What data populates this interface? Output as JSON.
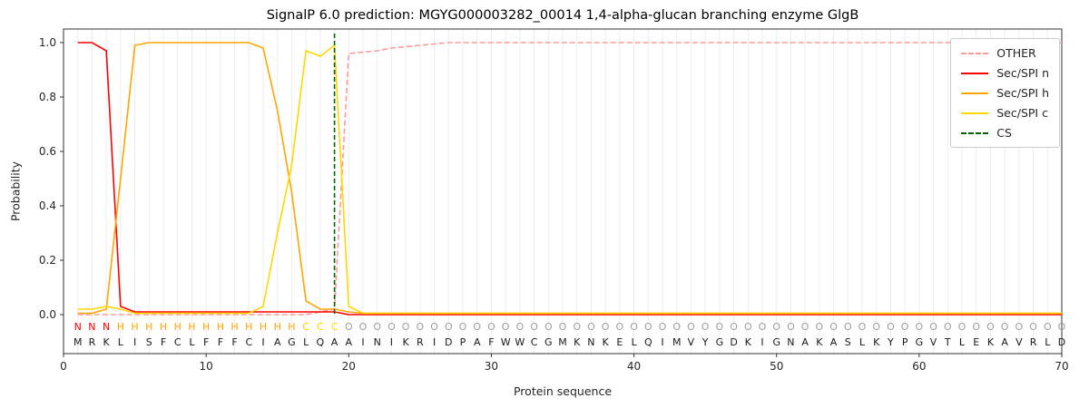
{
  "chart_data": {
    "type": "line",
    "title": "SignalP 6.0 prediction: MGYG000003282_00014 1,4-alpha-glucan branching enzyme GlgB",
    "xlabel": "Protein sequence",
    "ylabel": "Probability",
    "x_range": [
      1,
      70
    ],
    "xlim": [
      0,
      70
    ],
    "ylim": [
      -0.14,
      1.05
    ],
    "xticks": [
      0,
      10,
      20,
      30,
      40,
      50,
      60,
      70
    ],
    "yticks": [
      "0.0",
      "0.2",
      "0.4",
      "0.6",
      "0.8",
      "1.0"
    ],
    "grid": "vertical line per residue",
    "legend_position": "upper right",
    "series": [
      {
        "name": "OTHER",
        "color": "#ff9999",
        "dash": true,
        "values": [
          0,
          0,
          0,
          0,
          0,
          0,
          0,
          0,
          0,
          0,
          0,
          0,
          0,
          0,
          0,
          0,
          0,
          0.01,
          0.02,
          0.96,
          0.965,
          0.97,
          0.98,
          0.985,
          0.99,
          0.995,
          1,
          1,
          1,
          1,
          1,
          1,
          1,
          1,
          1,
          1,
          1,
          1,
          1,
          1,
          1,
          1,
          1,
          1,
          1,
          1,
          1,
          1,
          1,
          1,
          1,
          1,
          1,
          1,
          1,
          1,
          1,
          1,
          1,
          1,
          1,
          1,
          1,
          1,
          1,
          1,
          1,
          1,
          1,
          1
        ]
      },
      {
        "name": "Sec/SPI n",
        "color": "#ff0000",
        "dash": false,
        "values": [
          1,
          1,
          0.97,
          0.03,
          0.01,
          0.01,
          0.01,
          0.01,
          0.01,
          0.01,
          0.01,
          0.01,
          0.01,
          0.01,
          0.01,
          0.01,
          0.01,
          0.01,
          0.01,
          0,
          0,
          0,
          0,
          0,
          0,
          0,
          0,
          0,
          0,
          0,
          0,
          0,
          0,
          0,
          0,
          0,
          0,
          0,
          0,
          0,
          0,
          0,
          0,
          0,
          0,
          0,
          0,
          0,
          0,
          0,
          0,
          0,
          0,
          0,
          0,
          0,
          0,
          0,
          0,
          0,
          0,
          0,
          0,
          0,
          0,
          0,
          0,
          0,
          0,
          0
        ]
      },
      {
        "name": "Sec/SPI h",
        "color": "#ffa500",
        "dash": false,
        "values": [
          0.005,
          0.005,
          0.02,
          0.5,
          0.99,
          1,
          1,
          1,
          1,
          1,
          1,
          1,
          1,
          0.98,
          0.75,
          0.45,
          0.05,
          0.02,
          0.02,
          0.01,
          0.005,
          0.005,
          0.005,
          0.005,
          0.005,
          0.005,
          0.005,
          0.005,
          0.005,
          0.005,
          0.005,
          0.005,
          0.005,
          0.005,
          0.005,
          0.005,
          0.005,
          0.005,
          0.005,
          0.005,
          0.005,
          0.005,
          0.005,
          0.005,
          0.005,
          0.005,
          0.005,
          0.005,
          0.005,
          0.005,
          0.005,
          0.005,
          0.005,
          0.005,
          0.005,
          0.005,
          0.005,
          0.005,
          0.005,
          0.005,
          0.005,
          0.005,
          0.005,
          0.005,
          0.005,
          0.005,
          0.005,
          0.005,
          0.005,
          0.005
        ]
      },
      {
        "name": "Sec/SPI c",
        "color": "#ffd700",
        "dash": false,
        "values": [
          0.02,
          0.02,
          0.03,
          0.02,
          0.005,
          0.005,
          0.005,
          0.005,
          0.005,
          0.005,
          0.005,
          0.005,
          0.005,
          0.03,
          0.3,
          0.55,
          0.97,
          0.95,
          0.99,
          0.03,
          0.005,
          0.005,
          0.005,
          0.005,
          0.005,
          0.005,
          0.005,
          0.005,
          0.005,
          0.005,
          0.005,
          0.005,
          0.005,
          0.005,
          0.005,
          0.005,
          0.005,
          0.005,
          0.005,
          0.005,
          0.005,
          0.005,
          0.005,
          0.005,
          0.005,
          0.005,
          0.005,
          0.005,
          0.005,
          0.005,
          0.005,
          0.005,
          0.005,
          0.005,
          0.005,
          0.005,
          0.005,
          0.005,
          0.005,
          0.005,
          0.005,
          0.005,
          0.005,
          0.005,
          0.005,
          0.005,
          0.005,
          0.005,
          0.005,
          0.005
        ]
      }
    ],
    "cs": {
      "name": "CS",
      "color": "#006400",
      "dash": true,
      "position": 19
    },
    "sequence": "MRKLISFCLFFFCIAGLQAAINIKRIDPAFWWCGMKNKELQIMVYGDKIGNAKASLKYPGVTLEKAVRLD",
    "regions": "NNNHHHHHHHHHHHHHCCCOOOOOOOOOOOOOOOOOOOOOOOOOOOOOOOOOOOOOOOOOOOOOOOOOO",
    "region_colors": {
      "N": "#ff0000",
      "H": "#ffa500",
      "C": "#ffd700",
      "O": "#9e9e9e"
    },
    "sequence_color": "#1a1a1a"
  }
}
